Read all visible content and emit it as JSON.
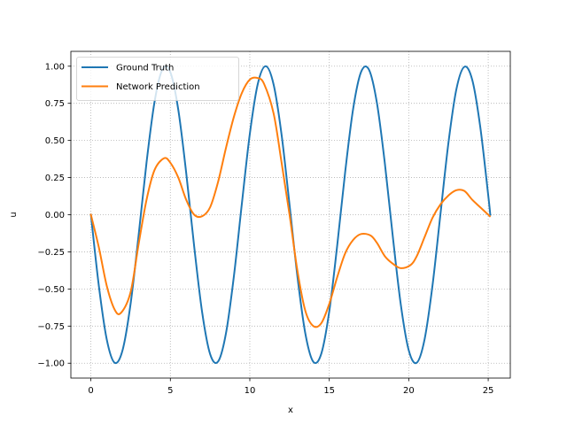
{
  "chart_data": {
    "type": "line",
    "title": "",
    "xlabel": "x",
    "ylabel": "u",
    "xlim": [
      -1.26,
      26.39
    ],
    "ylim": [
      -1.1,
      1.1
    ],
    "xticks": [
      0,
      5,
      10,
      15,
      20,
      25
    ],
    "xtick_labels": [
      "0",
      "5",
      "10",
      "15",
      "20",
      "25"
    ],
    "yticks": [
      -1.0,
      -0.75,
      -0.5,
      -0.25,
      0.0,
      0.25,
      0.5,
      0.75,
      1.0
    ],
    "ytick_labels": [
      "−1.00",
      "−0.75",
      "−0.50",
      "−0.25",
      "0.00",
      "0.25",
      "0.50",
      "0.75",
      "1.00"
    ],
    "grid": true,
    "legend_position": "top-left",
    "series": [
      {
        "name": "Ground Truth",
        "color": "#1f77b4",
        "x": [
          0.0,
          0.5,
          1.0,
          1.5,
          2.0,
          2.5,
          3.0,
          3.5,
          4.0,
          4.5,
          5.0,
          5.5,
          6.0,
          6.5,
          7.0,
          7.5,
          8.0,
          8.5,
          9.0,
          9.5,
          10.0,
          10.5,
          11.0,
          11.5,
          12.0,
          12.5,
          13.0,
          13.5,
          14.0,
          14.5,
          15.0,
          15.5,
          16.0,
          16.5,
          17.0,
          17.5,
          18.0,
          18.5,
          19.0,
          19.5,
          20.0,
          20.5,
          21.0,
          21.5,
          22.0,
          22.5,
          23.0,
          23.5,
          24.0,
          24.5,
          25.0,
          25.13
        ],
        "y": [
          0.0,
          -0.479,
          -0.841,
          -0.997,
          -0.909,
          -0.598,
          -0.141,
          0.351,
          0.757,
          0.978,
          0.959,
          0.706,
          0.279,
          -0.215,
          -0.657,
          -0.938,
          -0.989,
          -0.798,
          -0.412,
          0.075,
          0.544,
          0.88,
          1.0,
          0.875,
          0.537,
          0.066,
          -0.42,
          -0.804,
          -0.991,
          -0.935,
          -0.65,
          -0.206,
          0.288,
          0.712,
          0.961,
          0.976,
          0.751,
          0.342,
          -0.15,
          -0.605,
          -0.913,
          -0.997,
          -0.837,
          -0.472,
          0.009,
          0.487,
          0.846,
          0.996,
          0.906,
          0.591,
          0.132,
          0.0
        ]
      },
      {
        "name": "Network Prediction",
        "color": "#ff7f0e",
        "x": [
          0.0,
          0.5,
          1.0,
          1.5,
          1.9,
          2.5,
          3.0,
          3.5,
          4.0,
          4.6,
          5.0,
          5.5,
          6.0,
          6.5,
          7.0,
          7.5,
          8.0,
          8.5,
          9.0,
          9.5,
          10.0,
          10.5,
          10.9,
          11.5,
          12.0,
          12.5,
          13.0,
          13.5,
          14.0,
          14.5,
          15.0,
          15.5,
          16.0,
          16.5,
          17.0,
          17.6,
          18.0,
          18.5,
          19.0,
          19.5,
          20.1,
          20.5,
          21.0,
          21.5,
          22.0,
          22.5,
          23.0,
          23.5,
          24.0,
          24.5,
          25.1
        ],
        "y": [
          0.0,
          -0.22,
          -0.48,
          -0.64,
          -0.66,
          -0.52,
          -0.2,
          0.1,
          0.3,
          0.38,
          0.35,
          0.25,
          0.1,
          -0.0,
          -0.01,
          0.05,
          0.22,
          0.45,
          0.66,
          0.82,
          0.91,
          0.92,
          0.88,
          0.68,
          0.35,
          -0.0,
          -0.38,
          -0.65,
          -0.75,
          -0.73,
          -0.6,
          -0.42,
          -0.26,
          -0.17,
          -0.13,
          -0.14,
          -0.19,
          -0.28,
          -0.33,
          -0.36,
          -0.34,
          -0.28,
          -0.15,
          -0.02,
          0.07,
          0.13,
          0.165,
          0.16,
          0.1,
          0.05,
          -0.01
        ]
      }
    ]
  }
}
